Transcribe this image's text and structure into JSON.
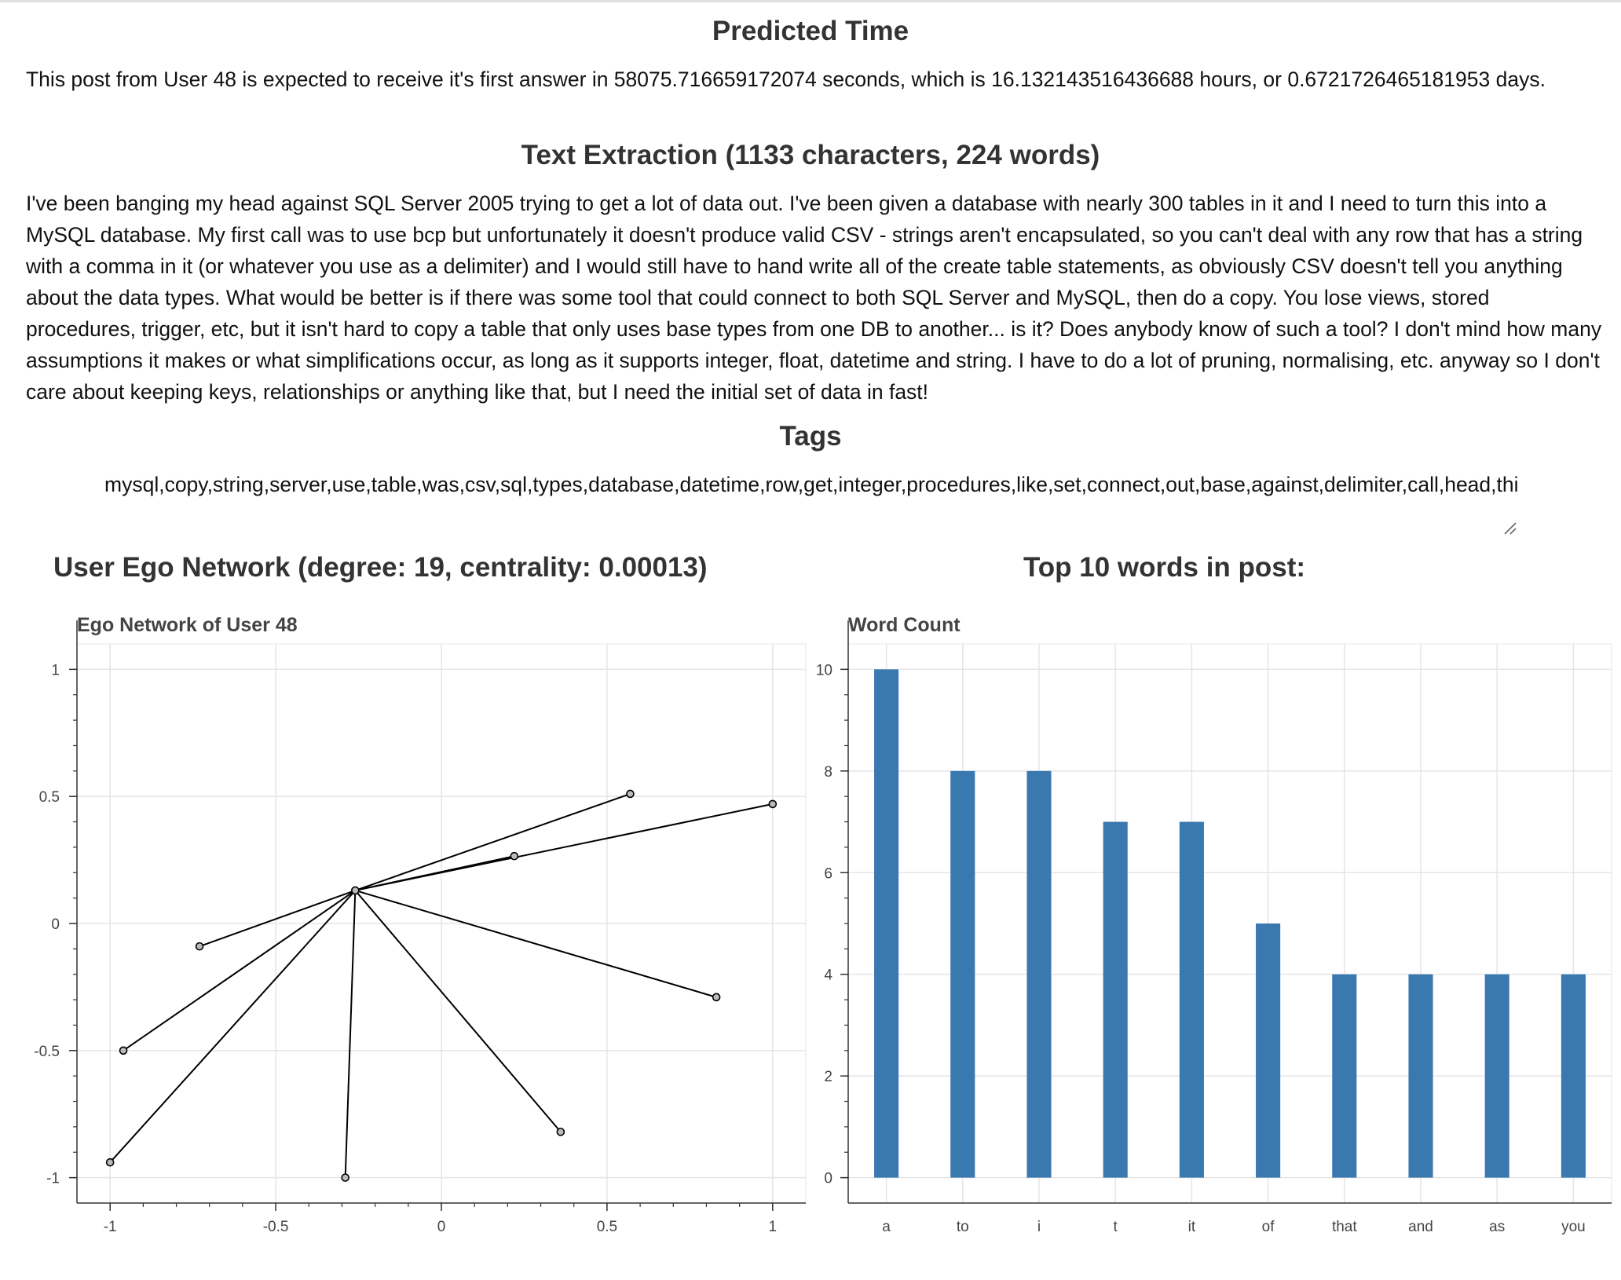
{
  "predicted": {
    "heading": "Predicted Time",
    "text": "This post from User 48 is expected to receive it's first answer in 58075.716659172074 seconds, which is 16.132143516436688 hours, or 0.6721726465181953 days."
  },
  "extraction": {
    "heading": "Text Extraction (1133 characters, 224 words)",
    "text": "I've been banging my head against SQL Server 2005 trying to get a lot of data out. I've been given a database with nearly 300 tables in it and I need to turn this into a MySQL database. My first call was to use bcp but unfortunately it doesn't produce valid CSV - strings aren't encapsulated, so you can't deal with any row that has a string with a comma in it (or whatever you use as a delimiter) and I would still have to hand write all of the create table statements, as obviously CSV doesn't tell you anything about the data types. What would be better is if there was some tool that could connect to both SQL Server and MySQL, then do a copy. You lose views, stored procedures, trigger, etc, but it isn't hard to copy a table that only uses base types from one DB to another... is it? Does anybody know of such a tool? I don't mind how many assumptions it makes or what simplifications occur, as long as it supports integer, float, datetime and string. I have to do a lot of pruning, normalising, etc. anyway so I don't care about keeping keys, relationships or anything like that, but I need the initial set of data in fast!"
  },
  "tags": {
    "heading": "Tags",
    "value": "mysql,copy,string,server,use,table,was,csv,sql,types,database,datetime,row,get,integer,procedures,like,set,connect,out,base,against,delimiter,call,head,this,can,views,bcp"
  },
  "ego_panel": {
    "heading": "User Ego Network (degree: 19, centrality: 0.00013)"
  },
  "words_panel": {
    "heading": "Top 10 words in post:"
  },
  "chart_data": [
    {
      "type": "scatter",
      "title": "Ego Network of User 48",
      "xlim": [
        -1.1,
        1.1
      ],
      "ylim": [
        -1.1,
        1.1
      ],
      "xticks": [
        "-1",
        "-0.5",
        "0",
        "0.5",
        "1"
      ],
      "yticks": [
        "1",
        "0.5",
        "0",
        "-0.5",
        "-1"
      ],
      "grid": true,
      "center": {
        "x": -0.26,
        "y": 0.13
      },
      "nodes": [
        {
          "x": 0.57,
          "y": 0.51
        },
        {
          "x": 1.0,
          "y": 0.47
        },
        {
          "x": 0.22,
          "y": 0.265
        },
        {
          "x": -0.73,
          "y": -0.09
        },
        {
          "x": -0.96,
          "y": -0.5
        },
        {
          "x": -1.0,
          "y": -0.94
        },
        {
          "x": -0.29,
          "y": -1.0
        },
        {
          "x": 0.36,
          "y": -0.82
        },
        {
          "x": 0.83,
          "y": -0.29
        }
      ],
      "edge_color": "#000000",
      "node_fill": "#bbbbbb"
    },
    {
      "type": "bar",
      "title": "Word Count",
      "categories": [
        "a",
        "to",
        "i",
        "t",
        "it",
        "of",
        "that",
        "and",
        "as",
        "you"
      ],
      "values": [
        10,
        8,
        8,
        7,
        7,
        5,
        4,
        4,
        4,
        4
      ],
      "ylim": [
        -0.5,
        10.5
      ],
      "yticks": [
        "10",
        "8",
        "6",
        "4",
        "2",
        "0"
      ],
      "grid": true,
      "bar_color": "#3a78b0"
    }
  ]
}
